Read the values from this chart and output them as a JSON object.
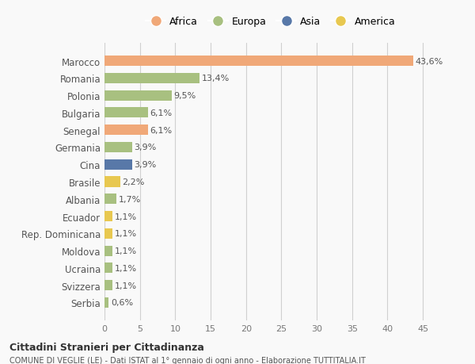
{
  "countries": [
    "Marocco",
    "Romania",
    "Polonia",
    "Bulgaria",
    "Senegal",
    "Germania",
    "Cina",
    "Brasile",
    "Albania",
    "Ecuador",
    "Rep. Dominicana",
    "Moldova",
    "Ucraina",
    "Svizzera",
    "Serbia"
  ],
  "values": [
    43.6,
    13.4,
    9.5,
    6.1,
    6.1,
    3.9,
    3.9,
    2.2,
    1.7,
    1.1,
    1.1,
    1.1,
    1.1,
    1.1,
    0.6
  ],
  "labels": [
    "43,6%",
    "13,4%",
    "9,5%",
    "6,1%",
    "6,1%",
    "3,9%",
    "3,9%",
    "2,2%",
    "1,7%",
    "1,1%",
    "1,1%",
    "1,1%",
    "1,1%",
    "1,1%",
    "0,6%"
  ],
  "continents": [
    "Africa",
    "Europa",
    "Europa",
    "Europa",
    "Africa",
    "Europa",
    "Asia",
    "America",
    "Europa",
    "America",
    "America",
    "Europa",
    "Europa",
    "Europa",
    "Europa"
  ],
  "continent_colors": {
    "Africa": "#F0A878",
    "Europa": "#A8C080",
    "Asia": "#5878A8",
    "America": "#E8C850"
  },
  "legend_order": [
    "Africa",
    "Europa",
    "Asia",
    "America"
  ],
  "xlim": [
    0,
    47
  ],
  "xticks": [
    0,
    5,
    10,
    15,
    20,
    25,
    30,
    35,
    40,
    45
  ],
  "title": "Cittadini Stranieri per Cittadinanza",
  "subtitle": "COMUNE DI VEGLIE (LE) - Dati ISTAT al 1° gennaio di ogni anno - Elaborazione TUTTITALIA.IT",
  "bg_color": "#f9f9f9",
  "grid_color": "#d0d0d0"
}
